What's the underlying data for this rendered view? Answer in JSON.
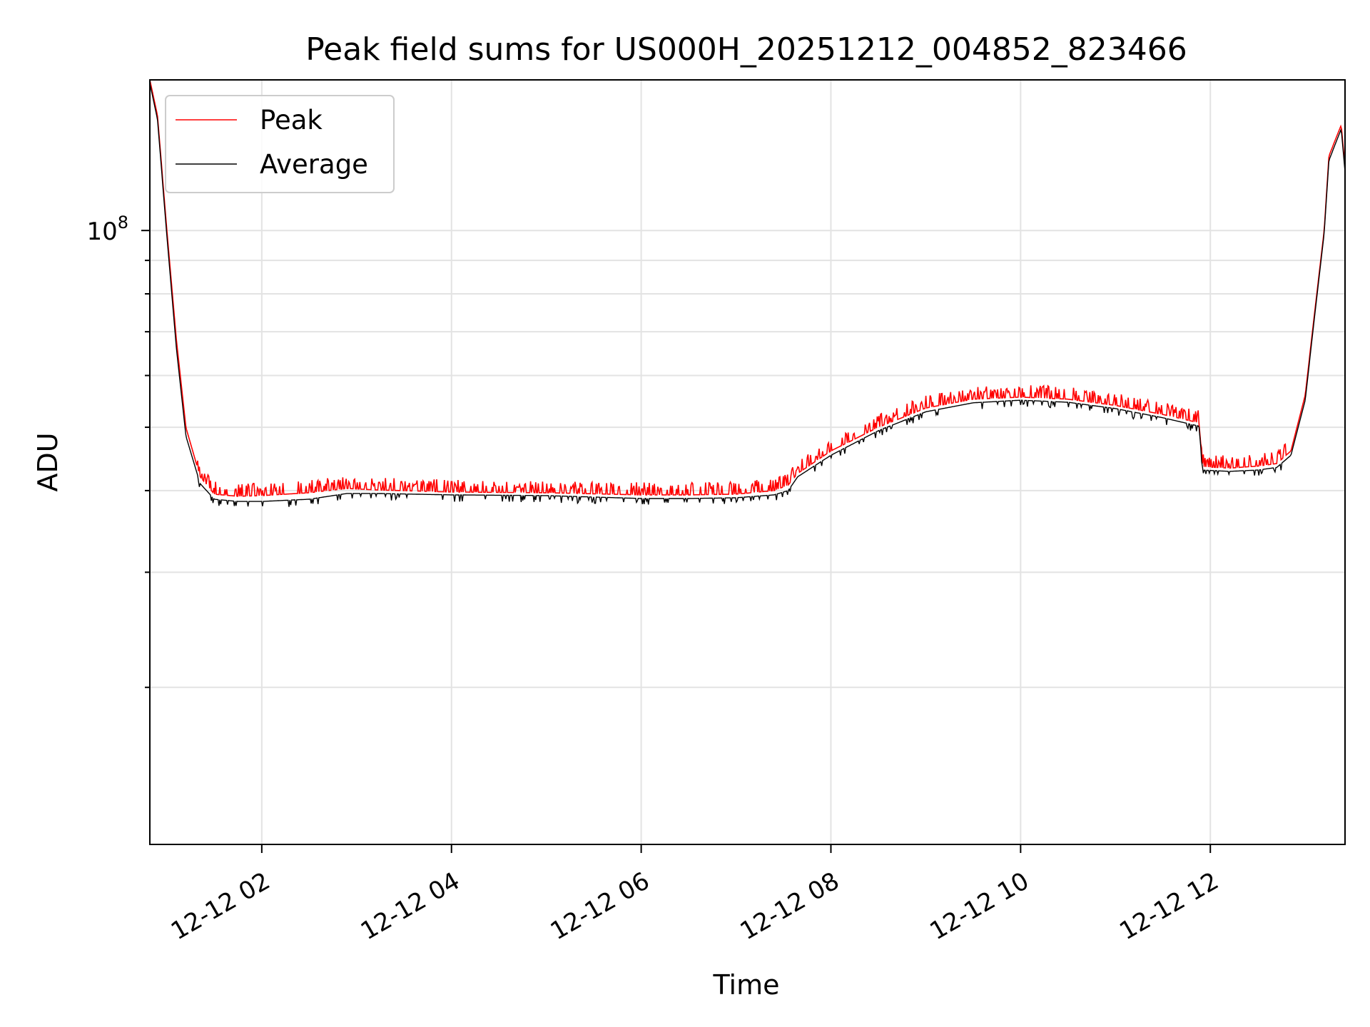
{
  "chart_data": {
    "type": "line",
    "title": "Peak field sums for US000H_20251212_004852_823466",
    "xlabel": "Time",
    "ylabel": "ADU",
    "y_scale": "log",
    "grid": true,
    "legend_placement": "top-left",
    "x_tick_labels": [
      "12-12 02",
      "12-12 04",
      "12-12 06",
      "12-12 08",
      "12-12 10",
      "12-12 12"
    ],
    "x_ticks_hours": [
      2,
      4,
      6,
      8,
      10,
      12
    ],
    "xlim_hours": [
      0.82,
      13.42
    ],
    "y_tick_label": "10",
    "y_tick_exponent": "8",
    "ylim": [
      11500000,
      170000000
    ],
    "series": [
      {
        "name": "Peak",
        "color": "#ff0000",
        "x_hours": [
          0.82,
          0.9,
          1.0,
          1.1,
          1.2,
          1.35,
          1.5,
          1.75,
          2.0,
          2.5,
          2.9,
          3.2,
          4.0,
          5.0,
          6.0,
          6.5,
          7.0,
          7.4,
          7.55,
          7.65,
          8.0,
          8.5,
          9.0,
          9.5,
          10.0,
          10.5,
          11.0,
          11.5,
          11.88,
          11.92,
          12.2,
          12.5,
          12.7,
          12.85,
          13.0,
          13.1,
          13.2,
          13.25,
          13.38,
          13.42
        ],
        "values": [
          170000000,
          150000000,
          100000000,
          68000000,
          50000000,
          42000000,
          39500000,
          39200000,
          39300000,
          39700000,
          40300000,
          40100000,
          39800000,
          39700000,
          39400000,
          39400000,
          39500000,
          40000000,
          40800000,
          42500000,
          46000000,
          50000000,
          53500000,
          55200000,
          55600000,
          55200000,
          54000000,
          52300000,
          50800000,
          43500000,
          43300000,
          43600000,
          44000000,
          46000000,
          56000000,
          75000000,
          100000000,
          130000000,
          145000000,
          125000000
        ]
      },
      {
        "name": "Average",
        "color": "#000000",
        "x_hours": [
          0.82,
          0.9,
          1.0,
          1.1,
          1.2,
          1.35,
          1.5,
          1.75,
          2.0,
          2.5,
          2.9,
          3.2,
          4.0,
          5.0,
          6.0,
          6.5,
          7.0,
          7.4,
          7.55,
          7.65,
          8.0,
          8.5,
          9.0,
          9.5,
          10.0,
          10.5,
          11.0,
          11.5,
          11.88,
          11.92,
          12.2,
          12.5,
          12.7,
          12.85,
          13.0,
          13.1,
          13.2,
          13.25,
          13.38,
          13.42
        ],
        "values": [
          168000000,
          148000000,
          98000000,
          66000000,
          48500000,
          41000000,
          38800000,
          38500000,
          38500000,
          38800000,
          39600000,
          39600000,
          39400000,
          39300000,
          38900000,
          38900000,
          39000000,
          39400000,
          40000000,
          42000000,
          45300000,
          49400000,
          52800000,
          54500000,
          55000000,
          54600000,
          53400000,
          51700000,
          50200000,
          43000000,
          42800000,
          43000000,
          43400000,
          45300000,
          55000000,
          74000000,
          99000000,
          128000000,
          143000000,
          123000000
        ]
      }
    ]
  }
}
